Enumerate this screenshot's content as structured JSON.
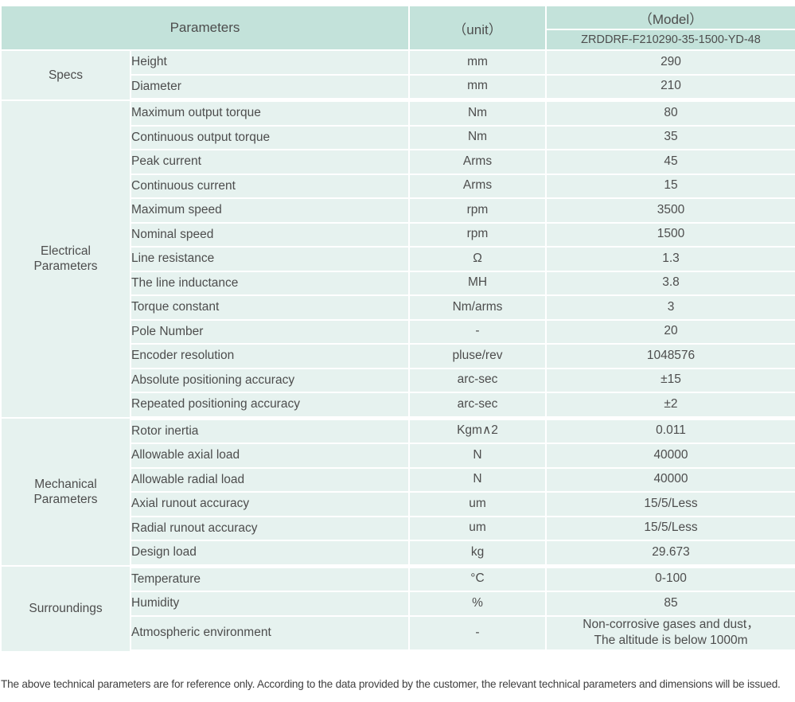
{
  "colors": {
    "header_bg": "#c3e2da",
    "row_bg": "#e6f2ef",
    "separator": "#ffffff",
    "text": "#4d4d4d"
  },
  "header": {
    "parameters_label": "Parameters",
    "unit_label": "（unit）",
    "model_label": "（Model）",
    "model_value": "ZRDDRF-F210290-35-1500-YD-48"
  },
  "groups": [
    {
      "name": "Specs",
      "rows": [
        {
          "parameter": "Height",
          "unit": "mm",
          "value": "290"
        },
        {
          "parameter": "Diameter",
          "unit": "mm",
          "value": "210"
        }
      ]
    },
    {
      "name": "Electrical\nParameters",
      "rows": [
        {
          "parameter": "Maximum output torque",
          "unit": "Nm",
          "value": "80"
        },
        {
          "parameter": "Continuous output torque",
          "unit": "Nm",
          "value": "35"
        },
        {
          "parameter": "Peak current",
          "unit": "Arms",
          "value": "45"
        },
        {
          "parameter": "Continuous current",
          "unit": "Arms",
          "value": "15"
        },
        {
          "parameter": "Maximum speed",
          "unit": "rpm",
          "value": "3500"
        },
        {
          "parameter": "Nominal speed",
          "unit": "rpm",
          "value": "1500"
        },
        {
          "parameter": "Line resistance",
          "unit": "Ω",
          "value": "1.3"
        },
        {
          "parameter": "The line inductance",
          "unit": "MH",
          "value": "3.8"
        },
        {
          "parameter": "Torque constant",
          "unit": "Nm/arms",
          "value": "3"
        },
        {
          "parameter": "Pole Number",
          "unit": "-",
          "value": "20"
        },
        {
          "parameter": "Encoder resolution",
          "unit": "pluse/rev",
          "value": "1048576"
        },
        {
          "parameter": "Absolute positioning accuracy",
          "unit": "arc-sec",
          "value": "±15"
        },
        {
          "parameter": "Repeated positioning accuracy",
          "unit": "arc-sec",
          "value": "±2"
        }
      ]
    },
    {
      "name": "Mechanical\nParameters",
      "rows": [
        {
          "parameter": "Rotor inertia",
          "unit": "Kgm∧2",
          "value": "0.011"
        },
        {
          "parameter": "Allowable axial load",
          "unit": "N",
          "value": "40000"
        },
        {
          "parameter": "Allowable radial load",
          "unit": "N",
          "value": "40000"
        },
        {
          "parameter": "Axial runout accuracy",
          "unit": "um",
          "value": "15/5/Less"
        },
        {
          "parameter": "Radial runout accuracy",
          "unit": "um",
          "value": "15/5/Less"
        },
        {
          "parameter": "Design load",
          "unit": "kg",
          "value": "29.673"
        }
      ]
    },
    {
      "name": "Surroundings",
      "rows": [
        {
          "parameter": "Temperature",
          "unit": "°C",
          "value": "0-100"
        },
        {
          "parameter": "Humidity",
          "unit": "%",
          "value": "85"
        },
        {
          "parameter": "Atmospheric environment",
          "unit": "-",
          "value": "Non-corrosive gases and dust，\nThe altitude is below 1000m",
          "tall": true
        }
      ]
    }
  ],
  "footer_note": "The above technical parameters are for reference only. According to the data provided by the customer, the relevant technical parameters and dimensions will be issued."
}
